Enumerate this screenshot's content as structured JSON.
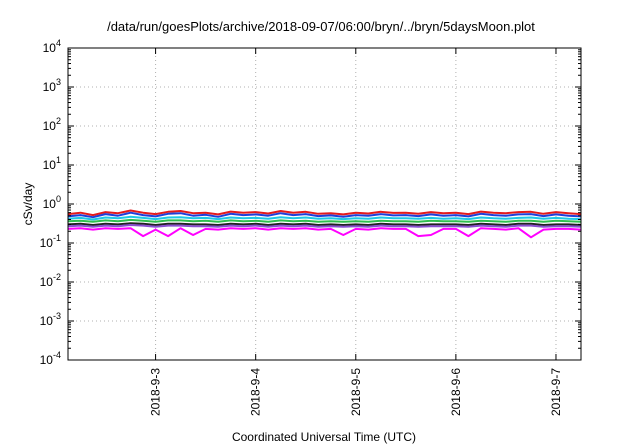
{
  "chart_data": {
    "type": "line",
    "title": "/data/run/goesPlots/archive/2018-09-07/06:00/bryn/../bryn/5daysMoon.plot",
    "xlabel": "Coordinated Universal Time (UTC)",
    "ylabel": "cSv/day",
    "yscale": "log",
    "ylim": [
      0.0001,
      10000
    ],
    "xlim": [
      "2018-09-02T03:00",
      "2018-09-07T06:00"
    ],
    "grid": true,
    "y_ticks": [
      {
        "value": 0.0001,
        "base": "10",
        "exp": "-4"
      },
      {
        "value": 0.001,
        "base": "10",
        "exp": "-3"
      },
      {
        "value": 0.01,
        "base": "10",
        "exp": "-2"
      },
      {
        "value": 0.1,
        "base": "10",
        "exp": "-1"
      },
      {
        "value": 1,
        "base": "10",
        "exp": "0"
      },
      {
        "value": 10,
        "base": "10",
        "exp": "1"
      },
      {
        "value": 100,
        "base": "10",
        "exp": "2"
      },
      {
        "value": 1000,
        "base": "10",
        "exp": "3"
      },
      {
        "value": 10000,
        "base": "10",
        "exp": "4"
      }
    ],
    "x_ticks": [
      {
        "label": "2018-9-3",
        "value": "2018-09-03T00:00"
      },
      {
        "label": "2018-9-4",
        "value": "2018-09-04T00:00"
      },
      {
        "label": "2018-9-5",
        "value": "2018-09-05T00:00"
      },
      {
        "label": "2018-9-6",
        "value": "2018-09-06T00:00"
      },
      {
        "label": "2018-9-7",
        "value": "2018-09-07T00:00"
      }
    ],
    "x": [
      "2018-09-02T03:00",
      "2018-09-02T06:00",
      "2018-09-02T09:00",
      "2018-09-02T12:00",
      "2018-09-02T15:00",
      "2018-09-02T18:00",
      "2018-09-02T21:00",
      "2018-09-03T00:00",
      "2018-09-03T03:00",
      "2018-09-03T06:00",
      "2018-09-03T09:00",
      "2018-09-03T12:00",
      "2018-09-03T15:00",
      "2018-09-03T18:00",
      "2018-09-03T21:00",
      "2018-09-04T00:00",
      "2018-09-04T03:00",
      "2018-09-04T06:00",
      "2018-09-04T09:00",
      "2018-09-04T12:00",
      "2018-09-04T15:00",
      "2018-09-04T18:00",
      "2018-09-04T21:00",
      "2018-09-05T00:00",
      "2018-09-05T03:00",
      "2018-09-05T06:00",
      "2018-09-05T09:00",
      "2018-09-05T12:00",
      "2018-09-05T15:00",
      "2018-09-05T18:00",
      "2018-09-05T21:00",
      "2018-09-06T00:00",
      "2018-09-06T03:00",
      "2018-09-06T06:00",
      "2018-09-06T09:00",
      "2018-09-06T12:00",
      "2018-09-06T15:00",
      "2018-09-06T18:00",
      "2018-09-06T21:00",
      "2018-09-07T00:00",
      "2018-09-07T03:00",
      "2018-09-07T06:00"
    ],
    "series": [
      {
        "color": "#e41a1c",
        "values": [
          0.55,
          0.6,
          0.52,
          0.62,
          0.58,
          0.68,
          0.6,
          0.55,
          0.63,
          0.66,
          0.58,
          0.6,
          0.54,
          0.64,
          0.6,
          0.62,
          0.57,
          0.66,
          0.6,
          0.63,
          0.56,
          0.58,
          0.54,
          0.6,
          0.57,
          0.63,
          0.59,
          0.6,
          0.56,
          0.62,
          0.58,
          0.6,
          0.55,
          0.64,
          0.6,
          0.58,
          0.62,
          0.63,
          0.56,
          0.62,
          0.58,
          0.55
        ]
      },
      {
        "color": "#1f3fd9",
        "values": [
          0.48,
          0.52,
          0.46,
          0.55,
          0.5,
          0.6,
          0.52,
          0.48,
          0.56,
          0.58,
          0.5,
          0.53,
          0.47,
          0.56,
          0.52,
          0.54,
          0.5,
          0.58,
          0.52,
          0.55,
          0.49,
          0.51,
          0.47,
          0.52,
          0.5,
          0.55,
          0.51,
          0.52,
          0.49,
          0.54,
          0.5,
          0.52,
          0.48,
          0.56,
          0.52,
          0.5,
          0.54,
          0.55,
          0.49,
          0.54,
          0.5,
          0.48
        ]
      },
      {
        "color": "#1ec8e6",
        "values": [
          0.42,
          0.44,
          0.4,
          0.45,
          0.43,
          0.47,
          0.44,
          0.41,
          0.45,
          0.46,
          0.43,
          0.44,
          0.41,
          0.45,
          0.43,
          0.44,
          0.42,
          0.46,
          0.43,
          0.45,
          0.42,
          0.43,
          0.41,
          0.43,
          0.42,
          0.45,
          0.43,
          0.43,
          0.42,
          0.44,
          0.42,
          0.43,
          0.41,
          0.45,
          0.43,
          0.42,
          0.44,
          0.45,
          0.42,
          0.44,
          0.42,
          0.41
        ]
      },
      {
        "color": "#2fbf4f",
        "values": [
          0.36,
          0.37,
          0.35,
          0.38,
          0.36,
          0.39,
          0.37,
          0.35,
          0.38,
          0.38,
          0.36,
          0.37,
          0.35,
          0.38,
          0.36,
          0.37,
          0.35,
          0.38,
          0.36,
          0.37,
          0.35,
          0.36,
          0.35,
          0.36,
          0.35,
          0.37,
          0.36,
          0.36,
          0.35,
          0.37,
          0.36,
          0.36,
          0.35,
          0.37,
          0.36,
          0.35,
          0.37,
          0.37,
          0.35,
          0.37,
          0.36,
          0.35
        ]
      },
      {
        "color": "#222222",
        "values": [
          0.3,
          0.31,
          0.29,
          0.31,
          0.3,
          0.32,
          0.31,
          0.29,
          0.31,
          0.31,
          0.3,
          0.3,
          0.29,
          0.31,
          0.3,
          0.31,
          0.29,
          0.31,
          0.3,
          0.31,
          0.29,
          0.3,
          0.29,
          0.3,
          0.29,
          0.31,
          0.3,
          0.3,
          0.29,
          0.3,
          0.3,
          0.3,
          0.29,
          0.31,
          0.3,
          0.29,
          0.31,
          0.31,
          0.29,
          0.3,
          0.3,
          0.29
        ]
      },
      {
        "color": "#8a4fd1",
        "values": [
          0.27,
          0.28,
          0.26,
          0.28,
          0.27,
          0.29,
          0.28,
          0.26,
          0.28,
          0.28,
          0.27,
          0.27,
          0.26,
          0.28,
          0.27,
          0.28,
          0.26,
          0.28,
          0.27,
          0.28,
          0.26,
          0.27,
          0.26,
          0.27,
          0.26,
          0.28,
          0.27,
          0.27,
          0.26,
          0.27,
          0.27,
          0.27,
          0.26,
          0.28,
          0.27,
          0.26,
          0.28,
          0.28,
          0.26,
          0.27,
          0.27,
          0.26
        ]
      },
      {
        "color": "#ff00ff",
        "values": [
          0.23,
          0.24,
          0.22,
          0.24,
          0.23,
          0.24,
          0.15,
          0.22,
          0.15,
          0.24,
          0.16,
          0.23,
          0.22,
          0.24,
          0.23,
          0.24,
          0.22,
          0.24,
          0.23,
          0.24,
          0.22,
          0.23,
          0.16,
          0.23,
          0.22,
          0.24,
          0.23,
          0.23,
          0.15,
          0.16,
          0.23,
          0.23,
          0.15,
          0.24,
          0.23,
          0.22,
          0.24,
          0.14,
          0.22,
          0.23,
          0.23,
          0.22
        ]
      }
    ]
  }
}
